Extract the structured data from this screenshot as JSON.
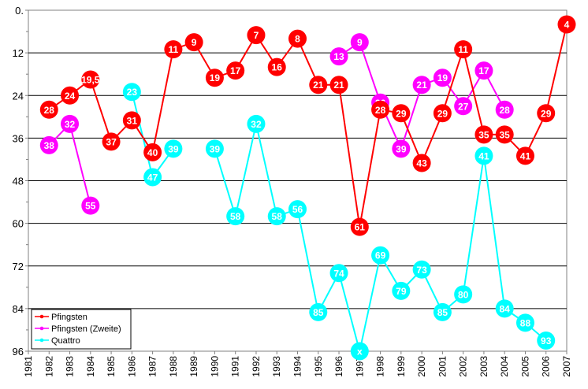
{
  "chart_data": {
    "type": "line",
    "title": "",
    "xlabel": "",
    "ylabel": "",
    "y_inverted": true,
    "ylim": [
      0,
      96
    ],
    "yticks": [
      "0",
      "12",
      "24",
      "36",
      "48",
      "60",
      "72",
      "84",
      "96"
    ],
    "categories": [
      "1981",
      "1982",
      "1983",
      "1984",
      "1985",
      "1986",
      "1987",
      "1988",
      "1989",
      "1990",
      "1991",
      "1992",
      "1993",
      "1994",
      "1995",
      "1996",
      "1997",
      "1998",
      "1999",
      "2000",
      "2001",
      "2002",
      "2003",
      "2004",
      "2005",
      "2006",
      "2007"
    ],
    "grid": "horizontal",
    "legend_position": "bottom-left",
    "series": [
      {
        "name": "Pfingsten",
        "color": "#ff0000",
        "points": [
          {
            "x": "1982",
            "y": 28,
            "label": "28"
          },
          {
            "x": "1983",
            "y": 24,
            "label": "24"
          },
          {
            "x": "1984",
            "y": 19.5,
            "label": "19,5"
          },
          {
            "x": "1985",
            "y": 37,
            "label": "37"
          },
          {
            "x": "1986",
            "y": 31,
            "label": "31"
          },
          {
            "x": "1987",
            "y": 40,
            "label": "40"
          },
          {
            "x": "1988",
            "y": 11,
            "label": "11"
          },
          {
            "x": "1989",
            "y": 9,
            "label": "9"
          },
          {
            "x": "1990",
            "y": 19,
            "label": "19"
          },
          {
            "x": "1991",
            "y": 17,
            "label": "17"
          },
          {
            "x": "1992",
            "y": 7,
            "label": "7"
          },
          {
            "x": "1993",
            "y": 16,
            "label": "16"
          },
          {
            "x": "1994",
            "y": 8,
            "label": "8"
          },
          {
            "x": "1995",
            "y": 21,
            "label": "21"
          },
          {
            "x": "1996",
            "y": 21,
            "label": "21"
          },
          {
            "x": "1997",
            "y": 61,
            "label": "61"
          },
          {
            "x": "1998",
            "y": 28,
            "label": "28"
          },
          {
            "x": "1999",
            "y": 29,
            "label": "29"
          },
          {
            "x": "2000",
            "y": 43,
            "label": "43"
          },
          {
            "x": "2001",
            "y": 29,
            "label": "29"
          },
          {
            "x": "2002",
            "y": 11,
            "label": "11"
          },
          {
            "x": "2003",
            "y": 35,
            "label": "35"
          },
          {
            "x": "2004",
            "y": 35,
            "label": "35"
          },
          {
            "x": "2005",
            "y": 41,
            "label": "41"
          },
          {
            "x": "2006",
            "y": 29,
            "label": "29"
          },
          {
            "x": "2007",
            "y": 4,
            "label": "4"
          }
        ]
      },
      {
        "name": "Pfingsten (Zweite)",
        "color": "#ff00ff",
        "points": [
          {
            "x": "1982",
            "y": 38,
            "label": "38"
          },
          {
            "x": "1983",
            "y": 32,
            "label": "32"
          },
          {
            "x": "1984",
            "y": 55,
            "label": "55"
          },
          {
            "x": "1996",
            "y": 13,
            "label": "13"
          },
          {
            "x": "1997",
            "y": 9,
            "label": "9"
          },
          {
            "x": "1998",
            "y": 26,
            "label": "26"
          },
          {
            "x": "1999",
            "y": 39,
            "label": "39"
          },
          {
            "x": "2000",
            "y": 21,
            "label": "21"
          },
          {
            "x": "2001",
            "y": 19,
            "label": "19"
          },
          {
            "x": "2002",
            "y": 27,
            "label": "27"
          },
          {
            "x": "2003",
            "y": 17,
            "label": "17"
          },
          {
            "x": "2004",
            "y": 28,
            "label": "28"
          }
        ]
      },
      {
        "name": "Quattro",
        "color": "#00ffff",
        "points": [
          {
            "x": "1986",
            "y": 23,
            "label": "23"
          },
          {
            "x": "1987",
            "y": 47,
            "label": "47"
          },
          {
            "x": "1988",
            "y": 39,
            "label": "39"
          },
          {
            "x": "1990",
            "y": 39,
            "label": "39"
          },
          {
            "x": "1991",
            "y": 58,
            "label": "58"
          },
          {
            "x": "1992",
            "y": 32,
            "label": "32"
          },
          {
            "x": "1993",
            "y": 58,
            "label": "58"
          },
          {
            "x": "1994",
            "y": 56,
            "label": "56"
          },
          {
            "x": "1995",
            "y": 85,
            "label": "85"
          },
          {
            "x": "1996",
            "y": 74,
            "label": "74"
          },
          {
            "x": "1997",
            "y": 96,
            "label": "x"
          },
          {
            "x": "1998",
            "y": 69,
            "label": "69"
          },
          {
            "x": "1999",
            "y": 79,
            "label": "79"
          },
          {
            "x": "2000",
            "y": 73,
            "label": "73"
          },
          {
            "x": "2001",
            "y": 85,
            "label": "85"
          },
          {
            "x": "2002",
            "y": 80,
            "label": "80"
          },
          {
            "x": "2003",
            "y": 41,
            "label": "41"
          },
          {
            "x": "2004",
            "y": 84,
            "label": "84"
          },
          {
            "x": "2005",
            "y": 88,
            "label": "88"
          },
          {
            "x": "2006",
            "y": 93,
            "label": "93"
          }
        ]
      }
    ]
  }
}
